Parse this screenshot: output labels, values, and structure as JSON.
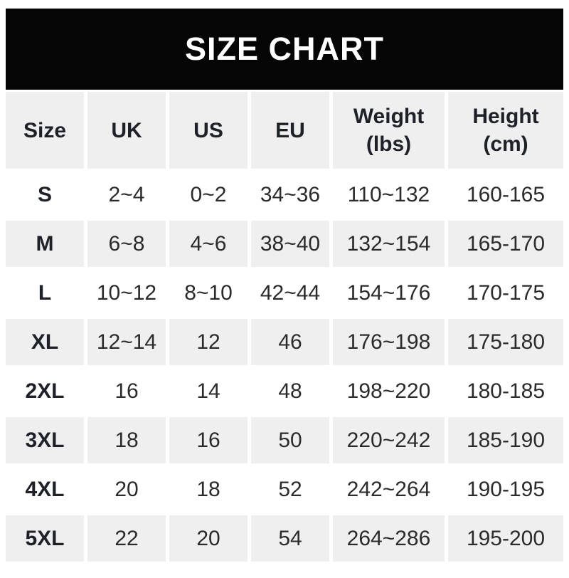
{
  "banner": {
    "title": "SIZE CHART"
  },
  "colors": {
    "banner_bg": "#050505",
    "banner_text": "#ffffff",
    "row_alt_bg": "#efefef",
    "row_bg": "#ffffff",
    "text": "#2b2b2b",
    "header_text": "#1e2128"
  },
  "chart_data": {
    "type": "table",
    "title": "SIZE CHART",
    "legend_position": "none",
    "grid": "alternating-row-shading",
    "columns": [
      {
        "label": "Size",
        "sublabel": ""
      },
      {
        "label": "UK",
        "sublabel": ""
      },
      {
        "label": "US",
        "sublabel": ""
      },
      {
        "label": "EU",
        "sublabel": ""
      },
      {
        "label": "Weight",
        "sublabel": "(lbs)"
      },
      {
        "label": "Height",
        "sublabel": "(cm)"
      }
    ],
    "rows": [
      {
        "size": "S",
        "uk": "2~4",
        "us": "0~2",
        "eu": "34~36",
        "weight_lbs": "110~132",
        "height_cm": "160-165"
      },
      {
        "size": "M",
        "uk": "6~8",
        "us": "4~6",
        "eu": "38~40",
        "weight_lbs": "132~154",
        "height_cm": "165-170"
      },
      {
        "size": "L",
        "uk": "10~12",
        "us": "8~10",
        "eu": "42~44",
        "weight_lbs": "154~176",
        "height_cm": "170-175"
      },
      {
        "size": "XL",
        "uk": "12~14",
        "us": "12",
        "eu": "46",
        "weight_lbs": "176~198",
        "height_cm": "175-180"
      },
      {
        "size": "2XL",
        "uk": "16",
        "us": "14",
        "eu": "48",
        "weight_lbs": "198~220",
        "height_cm": "180-185"
      },
      {
        "size": "3XL",
        "uk": "18",
        "us": "16",
        "eu": "50",
        "weight_lbs": "220~242",
        "height_cm": "185-190"
      },
      {
        "size": "4XL",
        "uk": "20",
        "us": "18",
        "eu": "52",
        "weight_lbs": "242~264",
        "height_cm": "190-195"
      },
      {
        "size": "5XL",
        "uk": "22",
        "us": "20",
        "eu": "54",
        "weight_lbs": "264~286",
        "height_cm": "195-200"
      }
    ]
  }
}
